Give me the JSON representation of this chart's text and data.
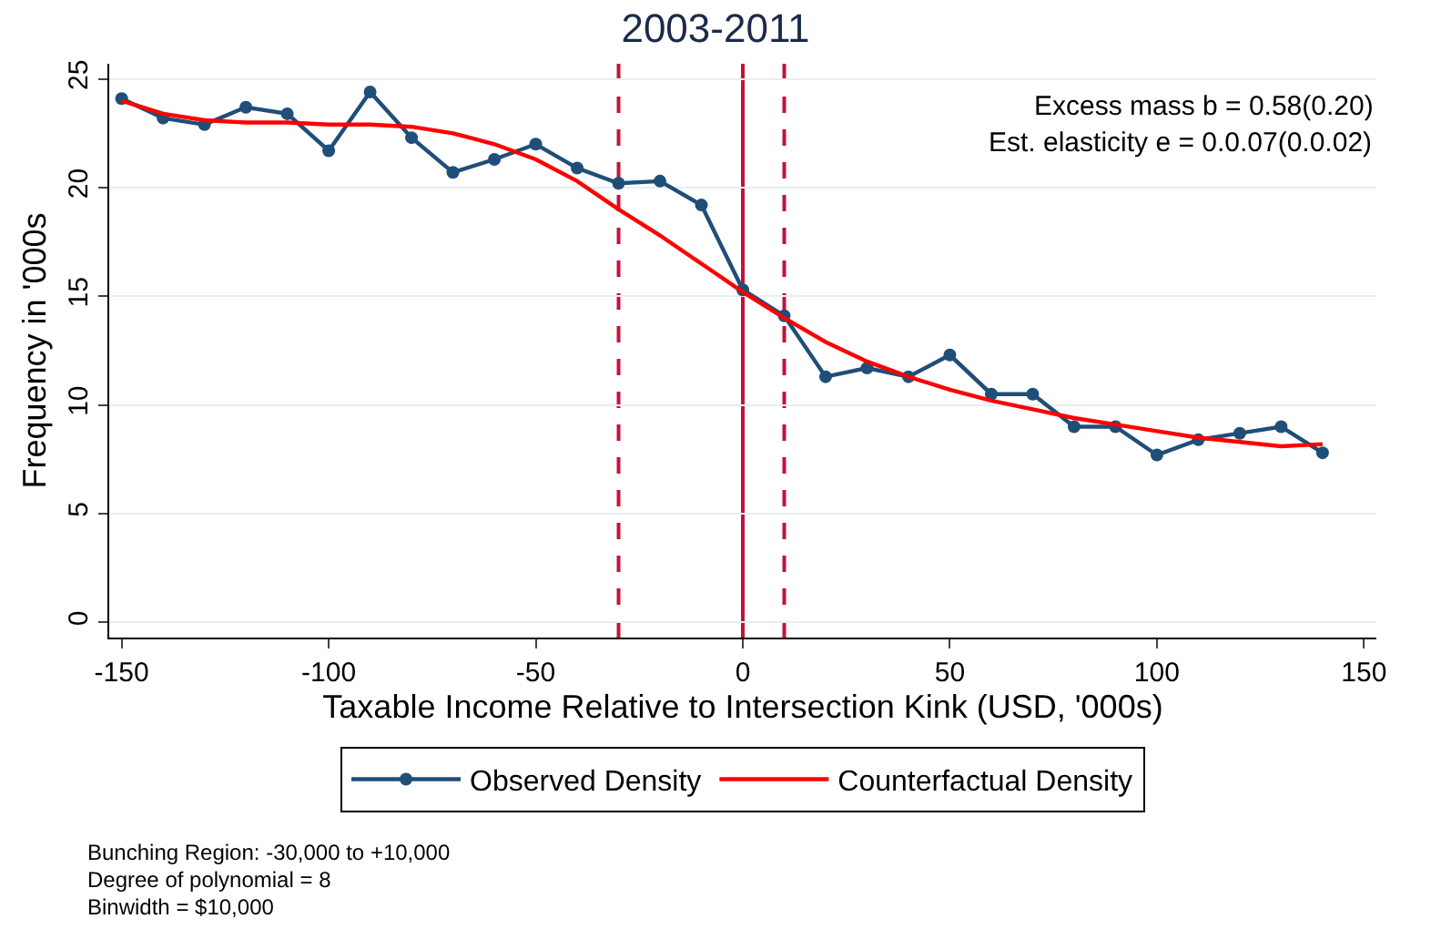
{
  "chart_data": {
    "type": "line",
    "title": "2003-2011",
    "xlabel": "Taxable Income Relative to Intersection Kink (USD, '000s)",
    "ylabel": "Frequency in '000s",
    "x": [
      -150,
      -140,
      -130,
      -120,
      -110,
      -100,
      -90,
      -80,
      -70,
      -60,
      -50,
      -40,
      -30,
      -20,
      -10,
      0,
      10,
      20,
      30,
      40,
      50,
      60,
      70,
      80,
      90,
      100,
      110,
      120,
      130,
      140
    ],
    "series": [
      {
        "name": "Observed Density",
        "color": "#1f4e79",
        "marker": "circle",
        "values": [
          24.1,
          23.2,
          22.9,
          23.7,
          23.4,
          21.7,
          24.4,
          22.3,
          20.7,
          21.3,
          22.0,
          20.9,
          20.2,
          20.3,
          19.2,
          15.3,
          14.1,
          11.3,
          11.7,
          11.3,
          12.3,
          10.5,
          10.5,
          9.0,
          9.0,
          7.7,
          8.4,
          8.7,
          9.0,
          7.8
        ]
      },
      {
        "name": "Counterfactual Density",
        "color": "#ff0000",
        "marker": "none",
        "values": [
          24.0,
          23.4,
          23.1,
          23.0,
          23.0,
          22.9,
          22.9,
          22.8,
          22.5,
          22.0,
          21.3,
          20.3,
          19.0,
          17.8,
          16.5,
          15.2,
          14.0,
          12.9,
          12.0,
          11.3,
          10.7,
          10.2,
          9.8,
          9.4,
          9.1,
          8.8,
          8.5,
          8.3,
          8.1,
          8.2
        ]
      }
    ],
    "xlim": [
      -153,
      153
    ],
    "ylim": [
      -0.7,
      25.7
    ],
    "xticks": [
      -150,
      -100,
      -50,
      0,
      50,
      100,
      150
    ],
    "yticks": [
      0,
      5,
      10,
      15,
      20,
      25
    ],
    "grid": "y",
    "legend": "bottom",
    "ref_lines": [
      {
        "axis": "x",
        "value": -30,
        "color": "#c0143c",
        "line_style": "dashed"
      },
      {
        "axis": "x",
        "value": 0,
        "color": "#c0143c",
        "line_style": "solid"
      },
      {
        "axis": "x",
        "value": 10,
        "color": "#c0143c",
        "line_style": "dashed"
      }
    ],
    "annotations": [
      "Excess mass b = 0.58(0.20)",
      "Est. elasticity e = 0.0.07(0.0.02)",
      "Bunching Region: -30,000 to +10,000",
      "Degree of polynomial = 8",
      "Binwidth = $10,000"
    ]
  }
}
